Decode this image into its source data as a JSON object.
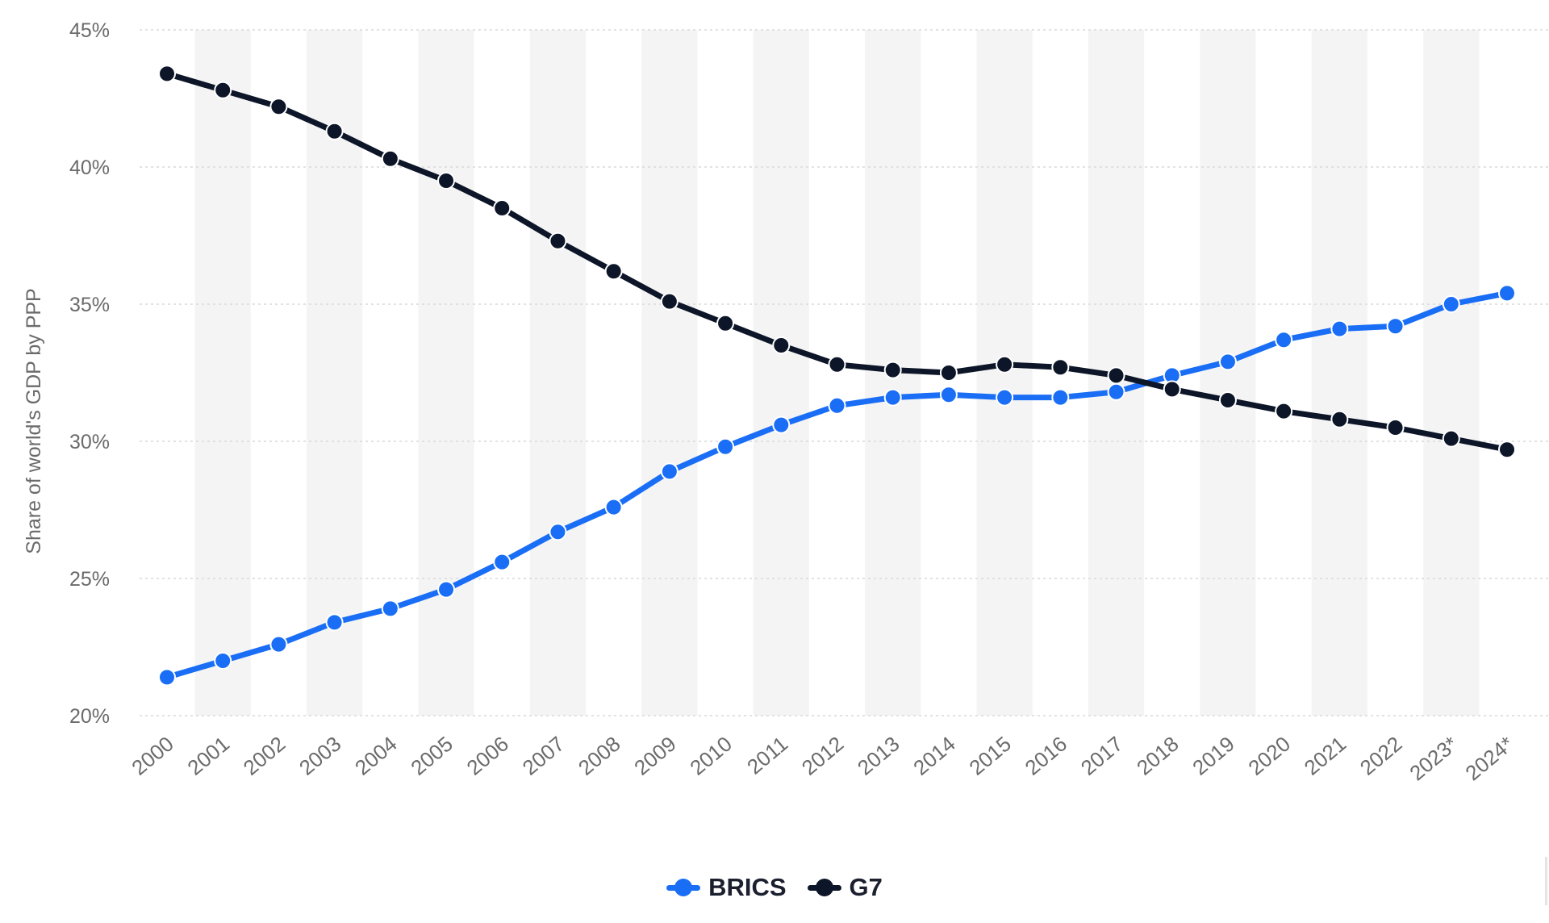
{
  "chart_data": {
    "type": "line",
    "title": "",
    "xlabel": "",
    "ylabel": "Share of world's GDP by PPP",
    "categories": [
      "2000",
      "2001",
      "2002",
      "2003",
      "2004",
      "2005",
      "2006",
      "2007",
      "2008",
      "2009",
      "2010",
      "2011",
      "2012",
      "2013",
      "2014",
      "2015",
      "2016",
      "2017",
      "2018",
      "2019",
      "2020",
      "2021",
      "2022",
      "2023*",
      "2024*"
    ],
    "y_ticks": [
      "20%",
      "25%",
      "30%",
      "35%",
      "40%",
      "45%"
    ],
    "ylim": [
      20,
      45
    ],
    "y_unit": "%",
    "grid": true,
    "legend_position": "bottom",
    "series": [
      {
        "name": "BRICS",
        "color": "#1a6ef5",
        "values": [
          21.4,
          22.0,
          22.6,
          23.4,
          23.9,
          24.6,
          25.6,
          26.7,
          27.6,
          28.9,
          29.8,
          30.6,
          31.3,
          31.6,
          31.7,
          31.6,
          31.6,
          31.8,
          32.4,
          32.9,
          33.7,
          34.1,
          34.2,
          35.0,
          35.4
        ]
      },
      {
        "name": "G7",
        "color": "#0d1628",
        "values": [
          43.4,
          42.8,
          42.2,
          41.3,
          40.3,
          39.5,
          38.5,
          37.3,
          36.2,
          35.1,
          34.3,
          33.5,
          32.8,
          32.6,
          32.5,
          32.8,
          32.7,
          32.4,
          31.9,
          31.5,
          31.1,
          30.8,
          30.5,
          30.1,
          29.7
        ]
      }
    ]
  }
}
